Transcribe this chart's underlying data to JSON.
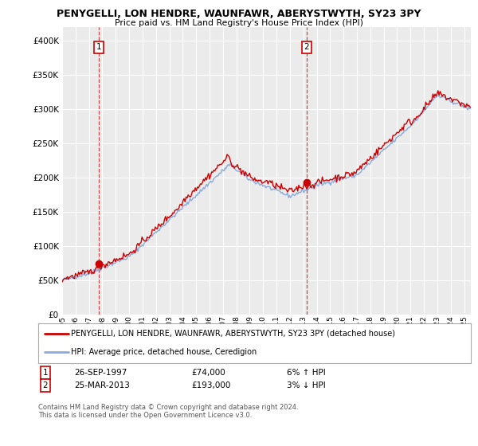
{
  "title": "PENYGELLI, LON HENDRE, WAUNFAWR, ABERYSTWYTH, SY23 3PY",
  "subtitle": "Price paid vs. HM Land Registry's House Price Index (HPI)",
  "ylabel_ticks": [
    "£0",
    "£50K",
    "£100K",
    "£150K",
    "£200K",
    "£250K",
    "£300K",
    "£350K",
    "£400K"
  ],
  "ylabel_values": [
    0,
    50000,
    100000,
    150000,
    200000,
    250000,
    300000,
    350000,
    400000
  ],
  "ylim": [
    0,
    420000
  ],
  "xlim_start": 1995.0,
  "xlim_end": 2025.5,
  "property_color": "#cc0000",
  "hpi_color": "#88aadd",
  "sale1_date": 1997.74,
  "sale1_price": 74000,
  "sale1_label": "1",
  "sale2_date": 2013.23,
  "sale2_price": 193000,
  "sale2_label": "2",
  "legend_property": "PENYGELLI, LON HENDRE, WAUNFAWR, ABERYSTWYTH, SY23 3PY (detached house)",
  "legend_hpi": "HPI: Average price, detached house, Ceredigion",
  "table_row1": [
    "1",
    "26-SEP-1997",
    "£74,000",
    "6% ↑ HPI"
  ],
  "table_row2": [
    "2",
    "25-MAR-2013",
    "£193,000",
    "3% ↓ HPI"
  ],
  "footer": "Contains HM Land Registry data © Crown copyright and database right 2024.\nThis data is licensed under the Open Government Licence v3.0.",
  "background_color": "#ffffff",
  "plot_bg_color": "#ebebeb",
  "grid_color": "#ffffff"
}
